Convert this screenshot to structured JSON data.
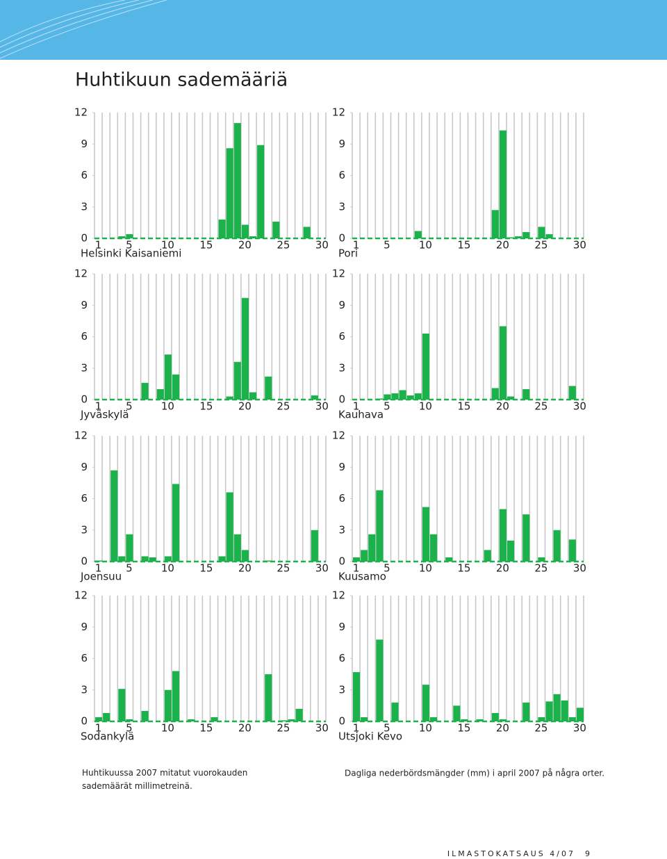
{
  "title": "Huhtikuun sademääriä",
  "captions": [
    "Huhtikuussa 2007 mitatut vuorokauden sademäärät millimetreinä.",
    "Dagliga nederbördsmängder (mm) i april 2007 på några orter."
  ],
  "footer": {
    "publication": "ILMASTOKATSAUS 4/07",
    "page": "9"
  },
  "chart_data": [
    {
      "type": "bar",
      "title": "Helsinki Kaisaniemi",
      "color": "#1bb24b",
      "ylim": [
        0,
        12
      ],
      "yticks": [
        0,
        3,
        6,
        9,
        12
      ],
      "categories": [
        1,
        null,
        null,
        null,
        5,
        null,
        null,
        null,
        null,
        10,
        null,
        null,
        null,
        null,
        15,
        null,
        null,
        null,
        null,
        20,
        null,
        null,
        null,
        null,
        25,
        null,
        null,
        null,
        null,
        30
      ],
      "values": [
        0,
        0,
        0,
        0.2,
        0.4,
        0,
        0,
        0,
        0,
        0,
        0,
        0,
        0,
        0,
        0,
        0,
        1.8,
        8.6,
        11,
        1.3,
        0.2,
        8.9,
        0,
        1.6,
        0,
        0,
        0,
        1.1,
        0,
        0
      ]
    },
    {
      "type": "bar",
      "title": "Pori",
      "color": "#1bb24b",
      "ylim": [
        0,
        12
      ],
      "yticks": [
        0,
        3,
        6,
        9,
        12
      ],
      "categories": [
        1,
        null,
        null,
        null,
        5,
        null,
        null,
        null,
        null,
        10,
        null,
        null,
        null,
        null,
        15,
        null,
        null,
        null,
        null,
        20,
        null,
        null,
        null,
        null,
        25,
        null,
        null,
        null,
        null,
        30
      ],
      "values": [
        0,
        0,
        0,
        0,
        0,
        0,
        0,
        0,
        0.7,
        0,
        0,
        0,
        0,
        0,
        0,
        0,
        0,
        0,
        2.7,
        10.3,
        0.1,
        0.2,
        0.6,
        0,
        1.1,
        0.4,
        0,
        0,
        0,
        0
      ]
    },
    {
      "type": "bar",
      "title": "Jyväskylä",
      "color": "#1bb24b",
      "ylim": [
        0,
        12
      ],
      "yticks": [
        0,
        3,
        6,
        9,
        12
      ],
      "categories": [
        1,
        null,
        null,
        null,
        5,
        null,
        null,
        null,
        null,
        10,
        null,
        null,
        null,
        null,
        15,
        null,
        null,
        null,
        null,
        20,
        null,
        null,
        null,
        null,
        25,
        null,
        null,
        null,
        null,
        30
      ],
      "values": [
        0,
        0,
        0,
        0,
        0,
        0,
        1.6,
        0,
        1.0,
        4.3,
        2.4,
        0,
        0,
        0,
        0,
        0,
        0,
        0.3,
        3.6,
        9.7,
        0.7,
        0,
        2.2,
        0,
        0,
        0,
        0,
        0,
        0.4,
        0
      ]
    },
    {
      "type": "bar",
      "title": "Kauhava",
      "color": "#1bb24b",
      "ylim": [
        0,
        12
      ],
      "yticks": [
        0,
        3,
        6,
        9,
        12
      ],
      "categories": [
        1,
        null,
        null,
        null,
        5,
        null,
        null,
        null,
        null,
        10,
        null,
        null,
        null,
        null,
        15,
        null,
        null,
        null,
        null,
        20,
        null,
        null,
        null,
        null,
        25,
        null,
        null,
        null,
        null,
        30
      ],
      "values": [
        0,
        0,
        0,
        0.1,
        0.5,
        0.6,
        0.9,
        0.4,
        0.6,
        6.3,
        0,
        0,
        0,
        0,
        0,
        0,
        0,
        0,
        1.1,
        7.0,
        0.3,
        0,
        1.0,
        0,
        0,
        0,
        0,
        0,
        1.3,
        0
      ]
    },
    {
      "type": "bar",
      "title": "Joensuu",
      "color": "#1bb24b",
      "ylim": [
        0,
        12
      ],
      "yticks": [
        0,
        3,
        6,
        9,
        12
      ],
      "categories": [
        1,
        null,
        null,
        null,
        5,
        null,
        null,
        null,
        null,
        10,
        null,
        null,
        null,
        null,
        15,
        null,
        null,
        null,
        null,
        20,
        null,
        null,
        null,
        null,
        25,
        null,
        null,
        null,
        null,
        30
      ],
      "values": [
        0.1,
        0,
        8.7,
        0.5,
        2.6,
        0,
        0.5,
        0.4,
        0,
        0.5,
        7.4,
        0,
        0,
        0,
        0,
        0,
        0.5,
        6.6,
        2.6,
        1.1,
        0,
        0,
        0.1,
        0,
        0,
        0,
        0,
        0,
        3.0,
        0
      ]
    },
    {
      "type": "bar",
      "title": "Kuusamo",
      "color": "#1bb24b",
      "ylim": [
        0,
        12
      ],
      "yticks": [
        0,
        3,
        6,
        9,
        12
      ],
      "categories": [
        1,
        null,
        null,
        null,
        5,
        null,
        null,
        null,
        null,
        10,
        null,
        null,
        null,
        null,
        15,
        null,
        null,
        null,
        null,
        20,
        null,
        null,
        null,
        null,
        25,
        null,
        null,
        null,
        null,
        30
      ],
      "values": [
        0.4,
        1.1,
        2.6,
        6.8,
        0,
        0,
        0,
        0,
        0,
        5.2,
        2.6,
        0,
        0.4,
        0,
        0,
        0,
        0,
        1.1,
        0,
        5.0,
        2.0,
        0,
        4.5,
        0,
        0.4,
        0,
        3.0,
        0,
        2.1,
        0
      ]
    },
    {
      "type": "bar",
      "title": "Sodankylä",
      "color": "#1bb24b",
      "ylim": [
        0,
        12
      ],
      "yticks": [
        0,
        3,
        6,
        9,
        12
      ],
      "categories": [
        1,
        null,
        null,
        null,
        5,
        null,
        null,
        null,
        null,
        10,
        null,
        null,
        null,
        null,
        15,
        null,
        null,
        null,
        null,
        20,
        null,
        null,
        null,
        null,
        25,
        null,
        null,
        null,
        null,
        30
      ],
      "values": [
        0.4,
        0.8,
        0,
        3.1,
        0.2,
        0,
        1.0,
        0,
        0,
        3.0,
        4.8,
        0,
        0.2,
        0,
        0,
        0.4,
        0,
        0,
        0,
        0,
        0,
        0,
        4.5,
        0,
        0.1,
        0.2,
        1.2,
        0,
        0,
        0
      ]
    },
    {
      "type": "bar",
      "title": "Utsjoki Kevo",
      "color": "#1bb24b",
      "ylim": [
        0,
        12
      ],
      "yticks": [
        0,
        3,
        6,
        9,
        12
      ],
      "categories": [
        1,
        null,
        null,
        null,
        5,
        null,
        null,
        null,
        null,
        10,
        null,
        null,
        null,
        null,
        15,
        null,
        null,
        null,
        null,
        20,
        null,
        null,
        null,
        null,
        25,
        null,
        null,
        null,
        null,
        30
      ],
      "values": [
        4.7,
        0.4,
        0,
        7.8,
        0,
        1.8,
        0,
        0,
        0,
        3.5,
        0.4,
        0,
        0,
        1.5,
        0.2,
        0,
        0.2,
        0,
        0.8,
        0.2,
        0,
        0,
        1.8,
        0,
        0.4,
        1.9,
        2.6,
        2.0,
        0.4,
        1.3
      ]
    }
  ]
}
